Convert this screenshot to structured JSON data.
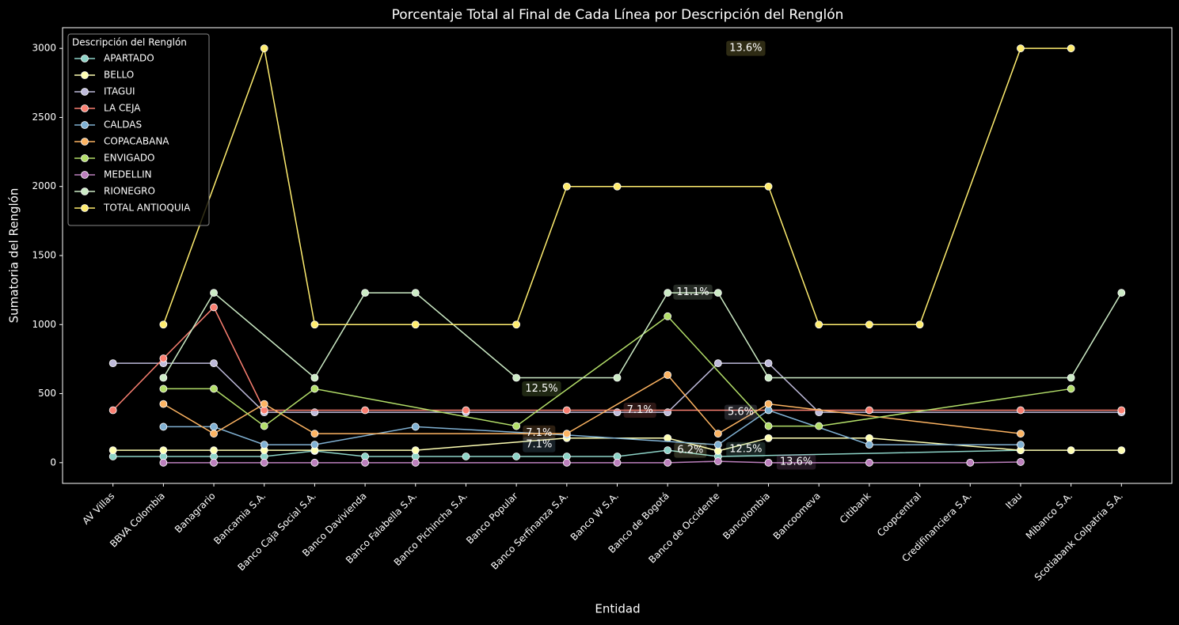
{
  "chart_data": {
    "type": "line",
    "title": "Porcentaje Total al Final de Cada Línea por Descripción del Renglón",
    "x_label": "Entidad",
    "y_label": "Sumatoria del Renglón",
    "categories": [
      "AV Villas",
      "BBVA Colombia",
      "Banagrario",
      "Bancamia S.A.",
      "Banco Caja Social S.A.",
      "Banco Davivienda",
      "Banco Falabella S.A.",
      "Banco Pichincha S.A.",
      "Banco Popular",
      "Banco Serfinanza S.A.",
      "Banco W S.A.",
      "Banco de Bogotá",
      "Banco de Occidente",
      "Bancolombia",
      "Bancoomeva",
      "Citibank",
      "Coopcentral",
      "Credifinanciera S.A.",
      "Itau",
      "Mibanco S.A.",
      "Scotiabank Colpatria S.A."
    ],
    "ylim": [
      -150,
      3150
    ],
    "yticks": [
      0,
      500,
      1000,
      1500,
      2000,
      2500,
      3000
    ],
    "legend_title": "Descripción del Renglón",
    "legend_position": "upper left",
    "series": [
      {
        "name": "APARTADO",
        "color": "#8dd3c7",
        "x": [
          "AV Villas",
          "BBVA Colombia",
          "Banagrario",
          "Bancamia S.A.",
          "Banco Caja Social S.A.",
          "Banco Davivienda",
          "Banco Falabella S.A.",
          "Banco Pichincha S.A.",
          "Banco Popular",
          "Banco Serfinanza S.A.",
          "Banco W S.A.",
          "Banco de Bogotá",
          "Banco de Occidente",
          "Itau"
        ],
        "values": [
          45,
          45,
          45,
          45,
          85,
          45,
          45,
          45,
          45,
          45,
          45,
          90,
          45,
          90
        ]
      },
      {
        "name": "BELLO",
        "color": "#ffffb3",
        "x": [
          "AV Villas",
          "BBVA Colombia",
          "Banagrario",
          "Bancamia S.A.",
          "Banco Caja Social S.A.",
          "Banco Falabella S.A.",
          "Banco Serfinanza S.A.",
          "Banco de Bogotá",
          "Banco de Occidente",
          "Bancolombia",
          "Citibank",
          "Itau",
          "Mibanco S.A.",
          "Scotiabank Colpatria S.A."
        ],
        "values": [
          90,
          90,
          90,
          90,
          90,
          90,
          178,
          178,
          85,
          178,
          178,
          90,
          90,
          90
        ]
      },
      {
        "name": "ITAGUI",
        "color": "#bebada",
        "x": [
          "AV Villas",
          "BBVA Colombia",
          "Banagrario",
          "Bancamia S.A.",
          "Banco Caja Social S.A.",
          "Banco Pichincha S.A.",
          "Banco W S.A.",
          "Banco de Bogotá",
          "Banco de Occidente",
          "Bancolombia",
          "Bancoomeva",
          "Scotiabank Colpatria S.A."
        ],
        "values": [
          720,
          720,
          720,
          365,
          365,
          365,
          365,
          365,
          720,
          720,
          365,
          365
        ]
      },
      {
        "name": "LA CEJA",
        "color": "#fb8072",
        "x": [
          "AV Villas",
          "BBVA Colombia",
          "Banagrario",
          "Bancamia S.A.",
          "Banco Davivienda",
          "Banco Pichincha S.A.",
          "Banco Serfinanza S.A.",
          "Citibank",
          "Itau",
          "Scotiabank Colpatria S.A."
        ],
        "values": [
          380,
          755,
          1125,
          380,
          380,
          380,
          380,
          380,
          380,
          380
        ]
      },
      {
        "name": "CALDAS",
        "color": "#80b1d3",
        "x": [
          "BBVA Colombia",
          "Banagrario",
          "Bancamia S.A.",
          "Banco Caja Social S.A.",
          "Banco Falabella S.A.",
          "Banco Serfinanza S.A.",
          "Banco de Occidente",
          "Bancolombia",
          "Citibank",
          "Itau"
        ],
        "values": [
          260,
          260,
          130,
          130,
          260,
          200,
          130,
          380,
          130,
          130
        ]
      },
      {
        "name": "COPACABANA",
        "color": "#fdb462",
        "x": [
          "BBVA Colombia",
          "Banagrario",
          "Bancamia S.A.",
          "Banco Caja Social S.A.",
          "Banco Serfinanza S.A.",
          "Banco de Bogotá",
          "Banco de Occidente",
          "Bancolombia",
          "Itau"
        ],
        "values": [
          425,
          210,
          425,
          210,
          210,
          635,
          210,
          425,
          210
        ]
      },
      {
        "name": "ENVIGADO",
        "color": "#b3de69",
        "x": [
          "BBVA Colombia",
          "Banagrario",
          "Bancamia S.A.",
          "Banco Caja Social S.A.",
          "Banco Popular",
          "Banco de Bogotá",
          "Bancolombia",
          "Bancoomeva",
          "Mibanco S.A."
        ],
        "values": [
          535,
          535,
          265,
          535,
          265,
          1060,
          265,
          265,
          535
        ]
      },
      {
        "name": "MEDELLIN",
        "color": "#bc80bd",
        "x": [
          "BBVA Colombia",
          "Banagrario",
          "Bancamia S.A.",
          "Banco Caja Social S.A.",
          "Banco Davivienda",
          "Banco Falabella S.A.",
          "Banco Serfinanza S.A.",
          "Banco W S.A.",
          "Banco de Bogotá",
          "Banco de Occidente",
          "Bancolombia",
          "Citibank",
          "Credifinanciera S.A.",
          "Itau"
        ],
        "values": [
          0,
          0,
          0,
          0,
          0,
          0,
          0,
          0,
          0,
          10,
          0,
          0,
          0,
          5
        ]
      },
      {
        "name": "RIONEGRO",
        "color": "#ccebc5",
        "x": [
          "BBVA Colombia",
          "Banagrario",
          "Banco Caja Social S.A.",
          "Banco Davivienda",
          "Banco Falabella S.A.",
          "Banco Popular",
          "Banco W S.A.",
          "Banco de Bogotá",
          "Banco de Occidente",
          "Bancolombia",
          "Mibanco S.A.",
          "Scotiabank Colpatria S.A."
        ],
        "values": [
          615,
          1230,
          615,
          1230,
          1230,
          615,
          615,
          1230,
          1230,
          615,
          615,
          1230
        ]
      },
      {
        "name": "TOTAL ANTIOQUIA",
        "color": "#ffed6f",
        "x": [
          "BBVA Colombia",
          "Bancamia S.A.",
          "Banco Caja Social S.A.",
          "Banco Falabella S.A.",
          "Banco Popular",
          "Banco Serfinanza S.A.",
          "Banco W S.A.",
          "Bancolombia",
          "Bancoomeva",
          "Citibank",
          "Coopcentral",
          "Itau",
          "Mibanco S.A."
        ],
        "values": [
          1000,
          3000,
          1000,
          1000,
          1000,
          2000,
          2000,
          2000,
          1000,
          1000,
          1000,
          3000,
          3000
        ]
      }
    ],
    "annotations": [
      {
        "text": "13.6%",
        "x": 12.55,
        "y": 3000,
        "color": "#ffed6f"
      },
      {
        "text": "11.1%",
        "x": 11.5,
        "y": 1235,
        "color": "#ccebc5"
      },
      {
        "text": "12.5%",
        "x": 8.5,
        "y": 535,
        "color": "#b3de69"
      },
      {
        "text": "7.1%",
        "x": 10.45,
        "y": 380,
        "color": "#fb8072"
      },
      {
        "text": "5.6%",
        "x": 12.45,
        "y": 365,
        "color": "#bebada"
      },
      {
        "text": "7.1%",
        "x": 8.45,
        "y": 215,
        "color": "#fdb462"
      },
      {
        "text": "7.1%",
        "x": 8.45,
        "y": 130,
        "color": "#80b1d3"
      },
      {
        "text": "6.2%",
        "x": 11.45,
        "y": 90,
        "color": "#ffffb3"
      },
      {
        "text": "12.5%",
        "x": 12.55,
        "y": 95,
        "color": "#8dd3c7"
      },
      {
        "text": "13.6%",
        "x": 13.55,
        "y": 5,
        "color": "#bc80bd"
      }
    ]
  }
}
